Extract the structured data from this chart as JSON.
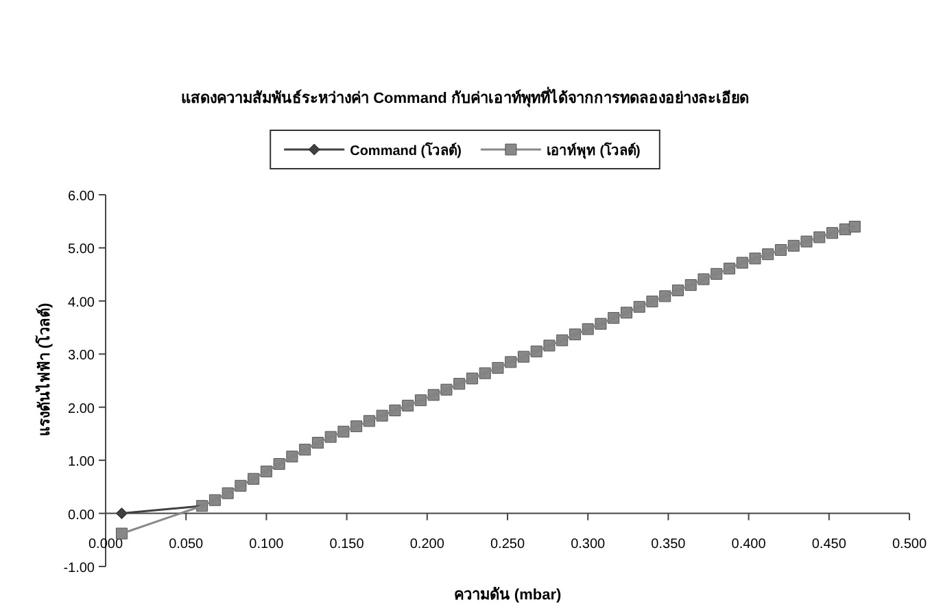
{
  "chart_data": {
    "type": "line",
    "title": "แสดงความสัมพันธ์ระหว่างค่า Command กับค่าเอาท์พุทที่ได้จากการทดลองอย่างละเอียด",
    "xlabel": "ความดัน (mbar)",
    "ylabel": "แรงดันไฟฟ้า (โวลต์)",
    "xlim": [
      0,
      0.5
    ],
    "ylim": [
      -1,
      6
    ],
    "xticks": [
      {
        "value": 0,
        "label": "0.000"
      },
      {
        "value": 0.05,
        "label": "0.050"
      },
      {
        "value": 0.1,
        "label": "0.100"
      },
      {
        "value": 0.15,
        "label": "0.150"
      },
      {
        "value": 0.2,
        "label": "0.200"
      },
      {
        "value": 0.25,
        "label": "0.250"
      },
      {
        "value": 0.3,
        "label": "0.300"
      },
      {
        "value": 0.35,
        "label": "0.350"
      },
      {
        "value": 0.4,
        "label": "0.400"
      },
      {
        "value": 0.45,
        "label": "0.450"
      },
      {
        "value": 0.5,
        "label": "0.500"
      }
    ],
    "yticks": [
      {
        "value": -1,
        "label": "-1.00"
      },
      {
        "value": 0,
        "label": "0.00"
      },
      {
        "value": 1,
        "label": "1.00"
      },
      {
        "value": 2,
        "label": "2.00"
      },
      {
        "value": 3,
        "label": "3.00"
      },
      {
        "value": 4,
        "label": "4.00"
      },
      {
        "value": 5,
        "label": "5.00"
      },
      {
        "value": 6,
        "label": "6.00"
      }
    ],
    "x": [
      0.01,
      0.06,
      0.068,
      0.076,
      0.084,
      0.092,
      0.1,
      0.108,
      0.116,
      0.124,
      0.132,
      0.14,
      0.148,
      0.156,
      0.164,
      0.172,
      0.18,
      0.188,
      0.196,
      0.204,
      0.212,
      0.22,
      0.228,
      0.236,
      0.244,
      0.252,
      0.26,
      0.268,
      0.276,
      0.284,
      0.292,
      0.3,
      0.308,
      0.316,
      0.324,
      0.332,
      0.34,
      0.348,
      0.356,
      0.364,
      0.372,
      0.38,
      0.388,
      0.396,
      0.404,
      0.412,
      0.42,
      0.428,
      0.436,
      0.444,
      0.452,
      0.46,
      0.466
    ],
    "series": [
      {
        "name": "Command (โวลต์)",
        "color": "#404040",
        "marker": "diamond",
        "values": [
          0.0,
          0.14,
          0.25,
          0.38,
          0.52,
          0.65,
          0.79,
          0.93,
          1.07,
          1.2,
          1.33,
          1.44,
          1.54,
          1.64,
          1.74,
          1.84,
          1.94,
          2.03,
          2.13,
          2.23,
          2.33,
          2.44,
          2.54,
          2.64,
          2.74,
          2.85,
          2.95,
          3.05,
          3.16,
          3.26,
          3.37,
          3.47,
          3.57,
          3.68,
          3.78,
          3.89,
          3.99,
          4.09,
          4.2,
          4.3,
          4.41,
          4.51,
          4.61,
          4.72,
          4.8,
          4.88,
          4.96,
          5.04,
          5.12,
          5.2,
          5.28,
          5.35,
          5.4
        ]
      },
      {
        "name": "เอาท์พุท (โวลต์)",
        "color": "#888888",
        "marker": "square",
        "values": [
          -0.38,
          0.14,
          0.25,
          0.38,
          0.52,
          0.65,
          0.79,
          0.93,
          1.07,
          1.2,
          1.33,
          1.44,
          1.54,
          1.64,
          1.74,
          1.84,
          1.94,
          2.03,
          2.13,
          2.23,
          2.33,
          2.44,
          2.54,
          2.64,
          2.74,
          2.85,
          2.95,
          3.05,
          3.16,
          3.26,
          3.37,
          3.47,
          3.57,
          3.68,
          3.78,
          3.89,
          3.99,
          4.09,
          4.2,
          4.3,
          4.41,
          4.51,
          4.61,
          4.72,
          4.8,
          4.88,
          4.96,
          5.04,
          5.12,
          5.2,
          5.28,
          5.35,
          5.4
        ]
      }
    ],
    "legend": "top",
    "grid": false
  }
}
